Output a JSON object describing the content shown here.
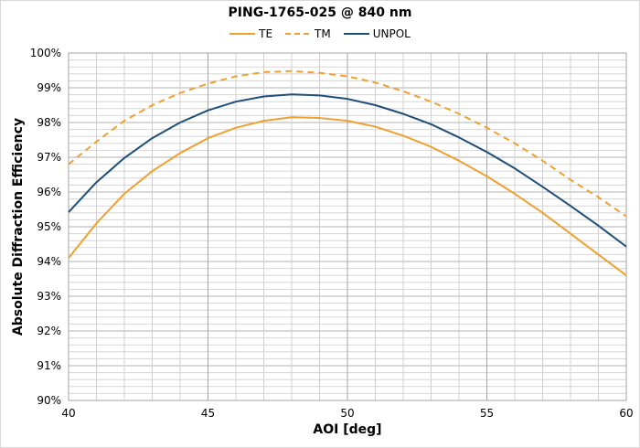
{
  "chart_data": {
    "type": "line",
    "title": "PING-1765-025 @ 840 nm",
    "xlabel": "AOI [deg]",
    "ylabel": "Absolute Diffraction Efficiency",
    "xlim": [
      40,
      60
    ],
    "ylim": [
      90,
      100
    ],
    "xticks": [
      "40",
      "45",
      "50",
      "55",
      "60"
    ],
    "yticks": [
      "90%",
      "91%",
      "92%",
      "93%",
      "94%",
      "95%",
      "96%",
      "97%",
      "98%",
      "99%",
      "100%"
    ],
    "grid": true,
    "legend": "top-center",
    "x": [
      40,
      41,
      42,
      43,
      44,
      45,
      46,
      47,
      48,
      49,
      50,
      51,
      52,
      53,
      54,
      55,
      56,
      57,
      58,
      59,
      60
    ],
    "series": [
      {
        "name": "TE",
        "color": "#f0a030",
        "dash": false,
        "values": [
          94.1,
          95.1,
          95.95,
          96.6,
          97.12,
          97.55,
          97.85,
          98.05,
          98.15,
          98.13,
          98.05,
          97.88,
          97.62,
          97.3,
          96.9,
          96.45,
          95.95,
          95.4,
          94.8,
          94.2,
          93.6
        ]
      },
      {
        "name": "TM",
        "color": "#f0a030",
        "dash": true,
        "values": [
          96.8,
          97.45,
          98.05,
          98.5,
          98.85,
          99.12,
          99.33,
          99.45,
          99.48,
          99.43,
          99.33,
          99.15,
          98.9,
          98.6,
          98.25,
          97.85,
          97.4,
          96.9,
          96.35,
          95.85,
          95.3
        ]
      },
      {
        "name": "UNPOL",
        "color": "#1f4e79",
        "dash": false,
        "values": [
          95.42,
          96.28,
          96.98,
          97.55,
          98.0,
          98.35,
          98.6,
          98.75,
          98.81,
          98.78,
          98.68,
          98.5,
          98.25,
          97.95,
          97.57,
          97.15,
          96.68,
          96.15,
          95.6,
          95.03,
          94.43
        ]
      }
    ]
  }
}
